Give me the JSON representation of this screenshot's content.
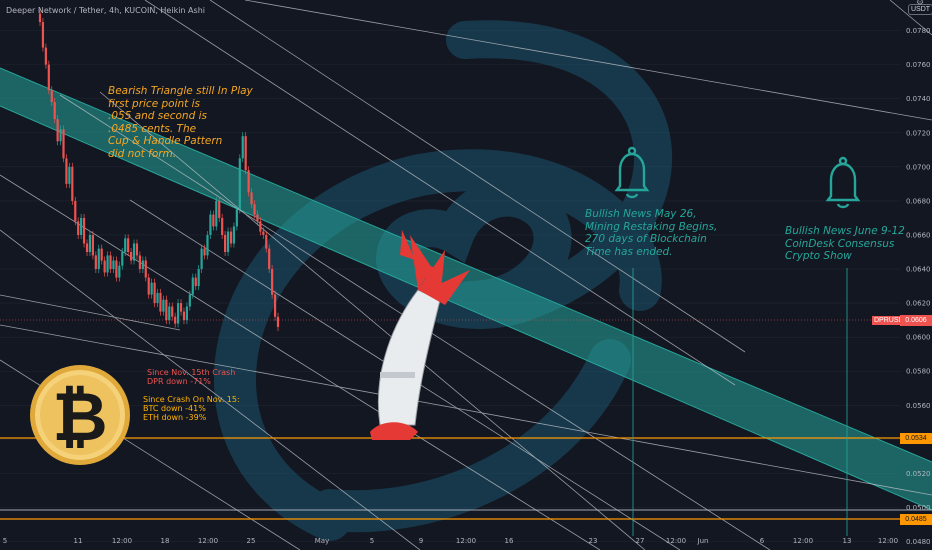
{
  "header": {
    "symbol_line": "Deeper Network / Tether, 4h, KUCOIN, Heikin Ashi",
    "currency": "USDT"
  },
  "price_axis": {
    "ticks": [
      "0.0780",
      "0.0760",
      "0.0740",
      "0.0720",
      "0.0700",
      "0.0680",
      "0.0660",
      "0.0640",
      "0.0620",
      "0.0600",
      "0.0580",
      "0.0560",
      "0.0540",
      "0.0520",
      "0.0500",
      "0.0480"
    ],
    "current_symbol": "DPRUSDT",
    "current_price": "0.0606",
    "level_1": "0.0534",
    "level_2": "0.0485"
  },
  "time_axis": {
    "ticks": [
      "5",
      "11",
      "12:00",
      "18",
      "12:00",
      "25",
      "May",
      "5",
      "9",
      "12:00",
      "16",
      "23",
      "27",
      "12:00",
      "Jun",
      "6",
      "12:00",
      "13",
      "12:00"
    ]
  },
  "annotations": {
    "bearish": "Bearish Triangle still In Play\nfirst price point is\n.055 and second is\n.0485 cents. The\nCup & Handle Pattern\ndid not form.",
    "news_may": "Bullish News May 26,\nMining Restaking Begins,\n270 days of Blockchain\nTime has ended.",
    "news_june": "Bullish News June 9-12\nCoinDesk Consensus\nCrypto Show",
    "since_dpr": "Since Nov. 15th Crash\nDPR down -71%",
    "since_crash": "Since Crash On Nov. 15:\nBTC down -41%\nETH down -39%"
  },
  "colors": {
    "background": "#131722",
    "channel": "#26a69a",
    "up_candle": "#26a69a",
    "down_candle": "#ef5350",
    "orange_level": "#ff9800",
    "trendline": "#c7c9d0"
  },
  "icons": [
    "bell-icon",
    "rocket-icon",
    "coin-icon",
    "logo-watermark"
  ],
  "chart_data": {
    "type": "candlestick",
    "x_unit": "4h bars",
    "ylim": [
      0.0478,
      0.0795
    ],
    "candles": [
      [
        0.079,
        0.0785
      ],
      [
        0.0785,
        0.077
      ],
      [
        0.077,
        0.076
      ],
      [
        0.076,
        0.0745
      ],
      [
        0.0745,
        0.0738
      ],
      [
        0.0738,
        0.0728
      ],
      [
        0.0728,
        0.0715
      ],
      [
        0.0715,
        0.0722
      ],
      [
        0.0722,
        0.0705
      ],
      [
        0.0705,
        0.069
      ],
      [
        0.069,
        0.07
      ],
      [
        0.07,
        0.068
      ],
      [
        0.068,
        0.0668
      ],
      [
        0.0668,
        0.066
      ],
      [
        0.066,
        0.067
      ],
      [
        0.067,
        0.0655
      ],
      [
        0.0655,
        0.065
      ],
      [
        0.065,
        0.066
      ],
      [
        0.066,
        0.0648
      ],
      [
        0.0648,
        0.064
      ],
      [
        0.064,
        0.0652
      ],
      [
        0.0652,
        0.0645
      ],
      [
        0.0645,
        0.0638
      ],
      [
        0.0638,
        0.0648
      ],
      [
        0.0648,
        0.064
      ],
      [
        0.064,
        0.0645
      ],
      [
        0.0645,
        0.0635
      ],
      [
        0.0635,
        0.0642
      ],
      [
        0.0642,
        0.065
      ],
      [
        0.065,
        0.0658
      ],
      [
        0.0658,
        0.065
      ],
      [
        0.065,
        0.0645
      ],
      [
        0.0645,
        0.0655
      ],
      [
        0.0655,
        0.0648
      ],
      [
        0.0648,
        0.064
      ],
      [
        0.064,
        0.0645
      ],
      [
        0.0645,
        0.0635
      ],
      [
        0.0635,
        0.0625
      ],
      [
        0.0625,
        0.0632
      ],
      [
        0.0632,
        0.062
      ],
      [
        0.062,
        0.0626
      ],
      [
        0.0626,
        0.0615
      ],
      [
        0.0615,
        0.0622
      ],
      [
        0.0622,
        0.061
      ],
      [
        0.061,
        0.0618
      ],
      [
        0.0618,
        0.0612
      ],
      [
        0.0612,
        0.0608
      ],
      [
        0.0608,
        0.062
      ],
      [
        0.062,
        0.0615
      ],
      [
        0.0615,
        0.061
      ],
      [
        0.061,
        0.0618
      ],
      [
        0.0618,
        0.0625
      ],
      [
        0.0625,
        0.0635
      ],
      [
        0.0635,
        0.063
      ],
      [
        0.063,
        0.064
      ],
      [
        0.064,
        0.0652
      ],
      [
        0.0652,
        0.0648
      ],
      [
        0.0648,
        0.066
      ],
      [
        0.066,
        0.0672
      ],
      [
        0.0672,
        0.0665
      ],
      [
        0.0665,
        0.068
      ],
      [
        0.068,
        0.067
      ],
      [
        0.067,
        0.066
      ],
      [
        0.066,
        0.065
      ],
      [
        0.065,
        0.0662
      ],
      [
        0.0662,
        0.0655
      ],
      [
        0.0655,
        0.0665
      ],
      [
        0.0665,
        0.0675
      ],
      [
        0.0675,
        0.0705
      ],
      [
        0.0705,
        0.0718
      ],
      [
        0.0718,
        0.0698
      ],
      [
        0.0698,
        0.0685
      ],
      [
        0.0685,
        0.0678
      ],
      [
        0.0678,
        0.0672
      ],
      [
        0.0672,
        0.0668
      ],
      [
        0.0668,
        0.0662
      ],
      [
        0.0662,
        0.066
      ],
      [
        0.066,
        0.0652
      ],
      [
        0.0652,
        0.064
      ],
      [
        0.064,
        0.0625
      ],
      [
        0.0625,
        0.0612
      ],
      [
        0.0612,
        0.0606
      ]
    ]
  }
}
